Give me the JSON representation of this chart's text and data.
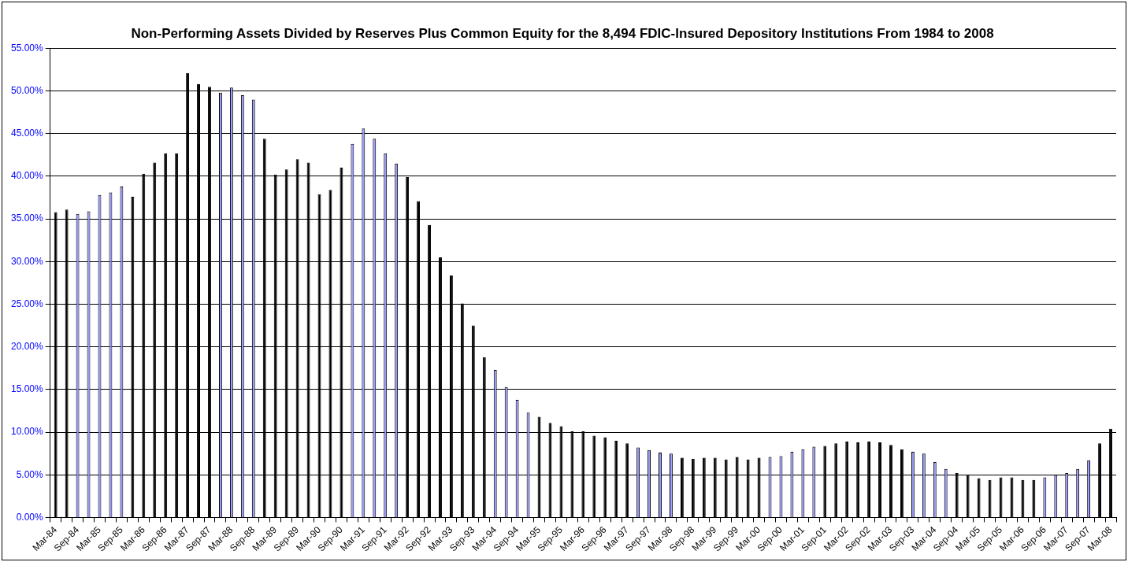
{
  "chart_data": {
    "type": "bar",
    "title": "Non-Performing Assets Divided by Reserves Plus Common Equity for the 8,494 FDIC-Insured Depository Institutions From 1984 to 2008",
    "categories": [
      "Mar-84",
      null,
      "Sep-84",
      null,
      "Mar-85",
      null,
      "Sep-85",
      null,
      "Mar-86",
      null,
      "Sep-86",
      null,
      "Mar-87",
      null,
      "Sep-87",
      null,
      "Mar-88",
      null,
      "Sep-88",
      null,
      "Mar-89",
      null,
      "Sep-89",
      null,
      "Mar-90",
      null,
      "Sep-90",
      null,
      "Mar-91",
      null,
      "Sep-91",
      null,
      "Mar-92",
      null,
      "Sep-92",
      null,
      "Mar-93",
      null,
      "Sep-93",
      null,
      "Mar-94",
      null,
      "Sep-94",
      null,
      "Mar-95",
      null,
      "Sep-95",
      null,
      "Mar-96",
      null,
      "Sep-96",
      null,
      "Mar-97",
      null,
      "Sep-97",
      null,
      "Mar-98",
      null,
      "Sep-98",
      null,
      "Mar-99",
      null,
      "Sep-99",
      null,
      "Mar-00",
      null,
      "Sep-00",
      null,
      "Mar-01",
      null,
      "Sep-01",
      null,
      "Mar-02",
      null,
      "Sep-02",
      null,
      "Mar-03",
      null,
      "Sep-03",
      null,
      "Mar-04",
      null,
      "Sep-04",
      null,
      "Mar-05",
      null,
      "Sep-05",
      null,
      "Mar-06",
      null,
      "Sep-06",
      null,
      "Mar-07",
      null,
      "Sep-07",
      null,
      "Mar-08"
    ],
    "values": [
      35.8,
      36.1,
      35.6,
      35.9,
      37.8,
      38.1,
      38.8,
      37.6,
      40.3,
      41.6,
      42.7,
      42.7,
      52.1,
      50.8,
      50.5,
      49.8,
      50.4,
      49.5,
      49.0,
      44.4,
      40.2,
      40.8,
      42.0,
      41.6,
      37.9,
      38.4,
      41.0,
      43.8,
      45.6,
      44.4,
      42.7,
      41.5,
      39.9,
      37.1,
      34.3,
      30.5,
      28.4,
      25.1,
      22.5,
      18.8,
      17.3,
      15.3,
      13.8,
      12.3,
      11.8,
      11.1,
      10.7,
      10.1,
      10.1,
      9.6,
      9.4,
      9.0,
      8.7,
      8.2,
      7.9,
      7.6,
      7.5,
      7.0,
      6.9,
      7.0,
      7.0,
      6.8,
      7.1,
      6.8,
      7.0,
      7.1,
      7.2,
      7.7,
      8.0,
      8.3,
      8.4,
      8.7,
      8.9,
      8.8,
      8.9,
      8.8,
      8.5,
      8.0,
      7.7,
      7.5,
      6.5,
      5.7,
      5.2,
      5.0,
      4.6,
      4.4,
      4.7,
      4.7,
      4.4,
      4.4,
      4.7,
      5.0,
      5.2,
      5.7,
      6.7,
      8.7,
      10.4
    ],
    "colors": [
      "#000000",
      "#000000",
      "#9999ff",
      "#9999ff",
      "#9999ff",
      "#9999ff",
      "#9999ff",
      "#000000",
      "#000000",
      "#000000",
      "#000000",
      "#000000",
      "#000000",
      "#000000",
      "#000000",
      "#9999ff",
      "#9999ff",
      "#9999ff",
      "#9999ff",
      "#000000",
      "#000000",
      "#000000",
      "#000000",
      "#000000",
      "#000000",
      "#000000",
      "#000000",
      "#9999ff",
      "#9999ff",
      "#9999ff",
      "#9999ff",
      "#9999ff",
      "#000000",
      "#000000",
      "#000000",
      "#000000",
      "#000000",
      "#000000",
      "#000000",
      "#000000",
      "#9999ff",
      "#9999ff",
      "#9999ff",
      "#9999ff",
      "#000000",
      "#000000",
      "#000000",
      "#000000",
      "#000000",
      "#000000",
      "#000000",
      "#000000",
      "#000000",
      "#9999ff",
      "#9999ff",
      "#9999ff",
      "#9999ff",
      "#000000",
      "#000000",
      "#000000",
      "#000000",
      "#000000",
      "#000000",
      "#000000",
      "#000000",
      "#9999ff",
      "#9999ff",
      "#9999ff",
      "#9999ff",
      "#9999ff",
      "#000000",
      "#000000",
      "#000000",
      "#000000",
      "#000000",
      "#000000",
      "#000000",
      "#000000",
      "#9999ff",
      "#9999ff",
      "#9999ff",
      "#9999ff",
      "#000000",
      "#000000",
      "#000000",
      "#000000",
      "#000000",
      "#000000",
      "#000000",
      "#000000",
      "#9999ff",
      "#9999ff",
      "#9999ff",
      "#9999ff",
      "#9999ff",
      "#000000",
      "#000000"
    ],
    "ylim": [
      0,
      55
    ],
    "yticks": [
      {
        "value": 0,
        "label": "0.00%"
      },
      {
        "value": 5,
        "label": "5.00%"
      },
      {
        "value": 10,
        "label": "10.00%"
      },
      {
        "value": 15,
        "label": "15.00%"
      },
      {
        "value": 20,
        "label": "20.00%"
      },
      {
        "value": 25,
        "label": "25.00%"
      },
      {
        "value": 30,
        "label": "30.00%"
      },
      {
        "value": 35,
        "label": "35.00%"
      },
      {
        "value": 40,
        "label": "40.00%"
      },
      {
        "value": 45,
        "label": "45.00%"
      },
      {
        "value": 50,
        "label": "50.00%"
      },
      {
        "value": 55,
        "label": "55.00%"
      }
    ],
    "grid": "y",
    "legend": false
  }
}
